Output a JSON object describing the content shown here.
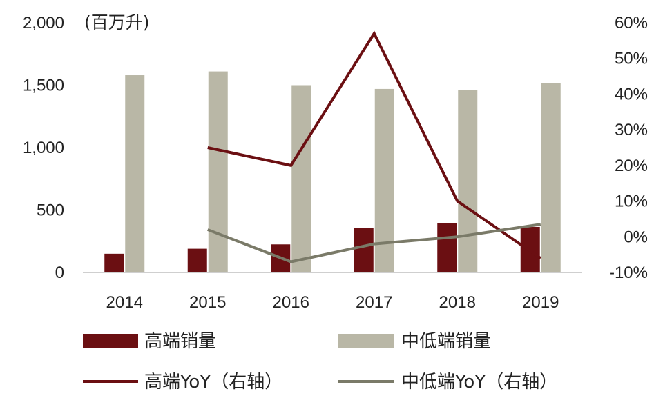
{
  "chart_data": {
    "type": "bar",
    "title": "",
    "xlabel": "",
    "ylabel": "",
    "left_unit": "(百万升)",
    "categories": [
      "2014",
      "2015",
      "2016",
      "2017",
      "2018",
      "2019"
    ],
    "left_axis": {
      "range": [
        0,
        2000
      ],
      "ticks": [
        0,
        500,
        1000,
        1500,
        2000
      ],
      "tick_labels": [
        "0",
        "500",
        "1,000",
        "1,500",
        "2,000"
      ]
    },
    "right_axis": {
      "range": [
        -10,
        60
      ],
      "ticks": [
        -10,
        0,
        10,
        20,
        30,
        40,
        50,
        60
      ],
      "tick_labels": [
        "-10%",
        "0%",
        "10%",
        "20%",
        "30%",
        "40%",
        "50%",
        "60%"
      ]
    },
    "grid": false,
    "legend_position": "bottom",
    "series": [
      {
        "name": "高端销量",
        "type": "bar",
        "axis": "left",
        "color": "#6b0f12",
        "values": [
          150,
          190,
          225,
          355,
          395,
          365
        ]
      },
      {
        "name": "中低端销量",
        "type": "bar",
        "axis": "left",
        "color": "#b9b7a6",
        "values": [
          1580,
          1610,
          1500,
          1470,
          1460,
          1515
        ]
      },
      {
        "name": "高端YoY（右轴）",
        "type": "line",
        "axis": "right",
        "color": "#6b0f12",
        "values": [
          null,
          25,
          20,
          57,
          10,
          -6
        ]
      },
      {
        "name": "中低端YoY（右轴）",
        "type": "line",
        "axis": "right",
        "color": "#7a7a68",
        "values": [
          null,
          2,
          -7,
          -2,
          0,
          3.5
        ]
      }
    ]
  }
}
